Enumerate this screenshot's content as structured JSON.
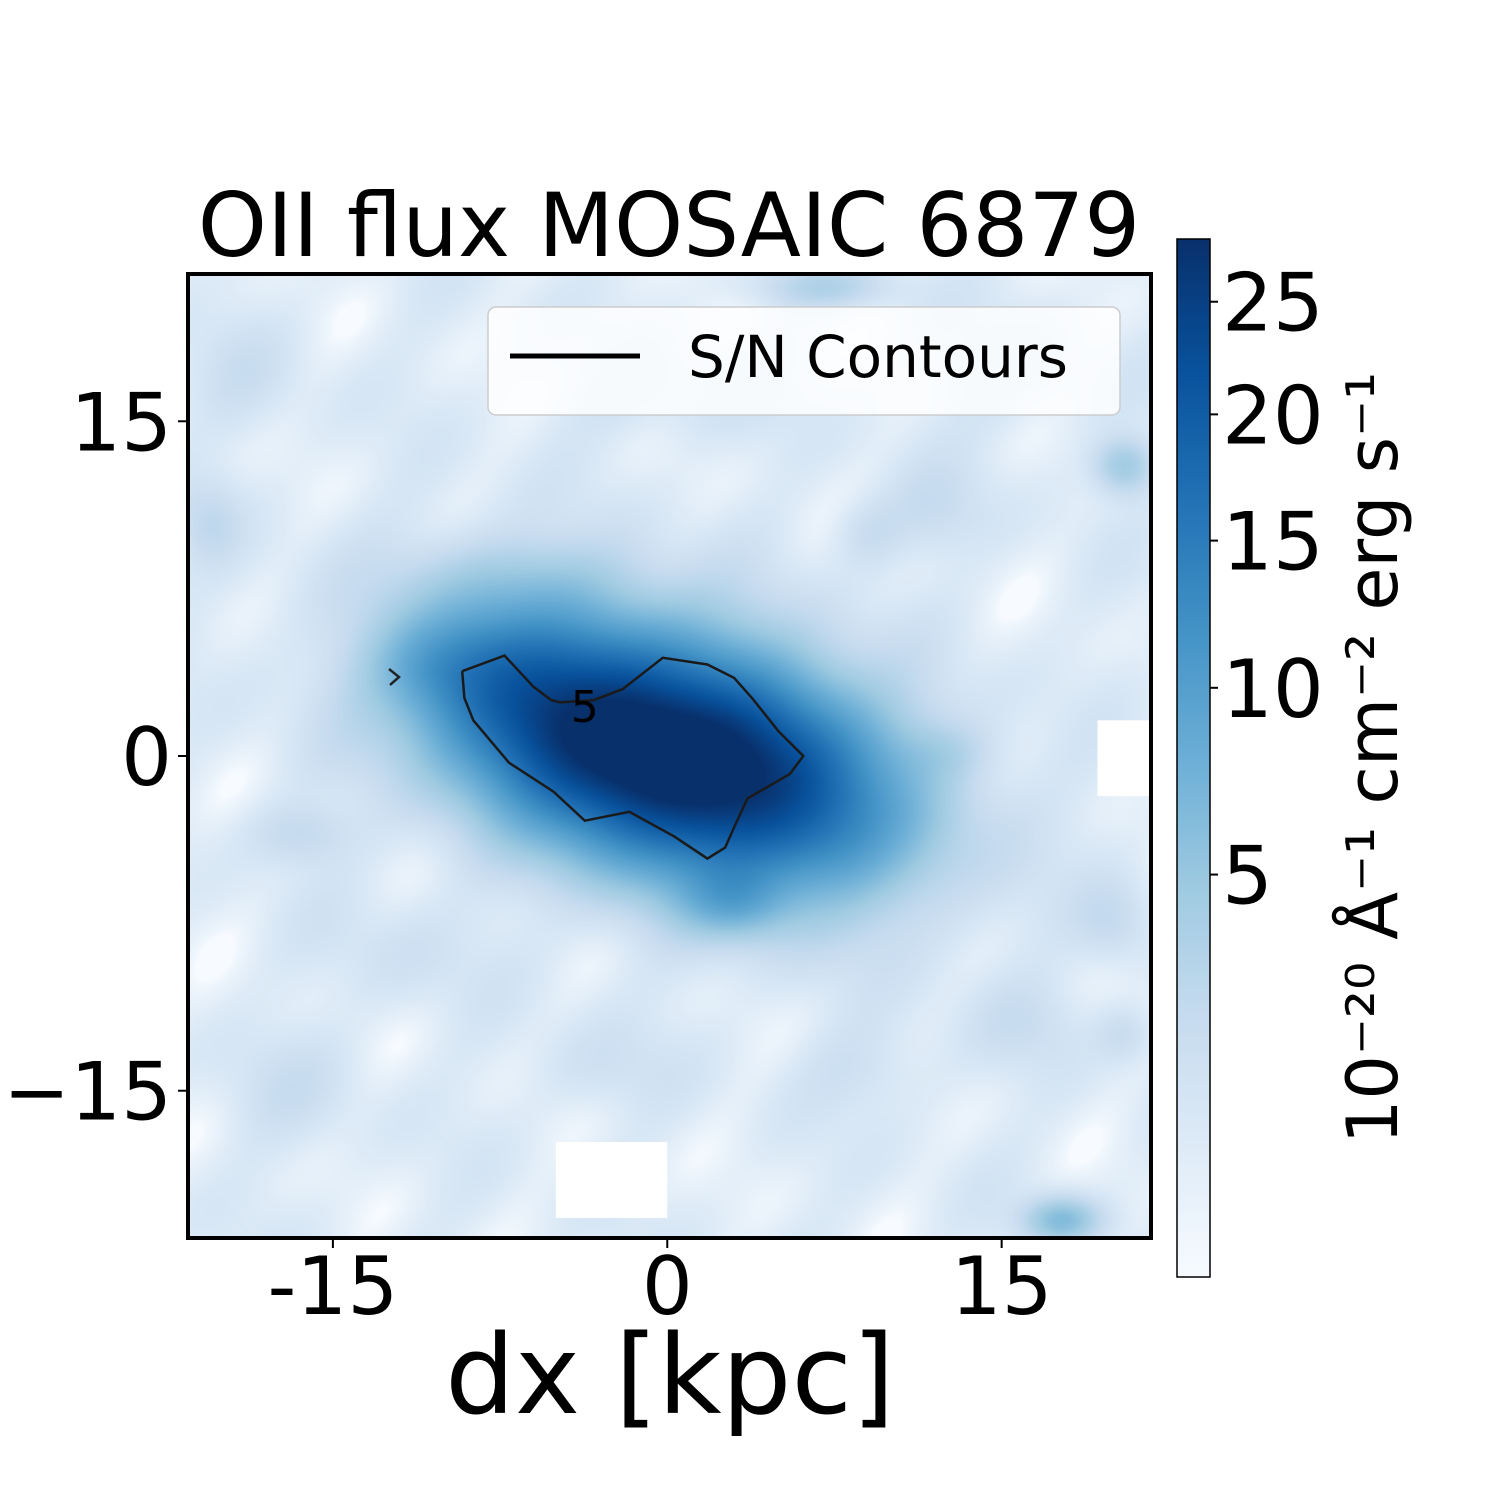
{
  "chart_data": {
    "type": "heatmap",
    "title": "OII flux MOSAIC 6879",
    "xlabel": "dx [kpc]",
    "ylabel": "",
    "xlim": [
      -21.5,
      21.7
    ],
    "ylim": [
      -21.6,
      21.6
    ],
    "x_ticks": [
      {
        "value": -15,
        "label": "-15"
      },
      {
        "value": 0,
        "label": "0"
      },
      {
        "value": 15,
        "label": "15"
      }
    ],
    "y_ticks": [
      {
        "value": 15,
        "label": "15"
      },
      {
        "value": 0,
        "label": "0"
      },
      {
        "value": -15,
        "label": "−15"
      }
    ],
    "colormap": "Blues",
    "colorbar": {
      "label": "10⁻²⁰ Å⁻¹ cm⁻² erg s⁻¹",
      "range": [
        0,
        28
      ],
      "ticks": [
        {
          "value": 5,
          "label": "5"
        },
        {
          "value": 10,
          "label": "10"
        },
        {
          "value": 15,
          "label": "15"
        },
        {
          "value": 20,
          "label": "20"
        },
        {
          "value": 25,
          "label": "25"
        }
      ]
    },
    "legend": {
      "placement": "top-right",
      "entries": [
        {
          "label": "S/N Contours",
          "color": "#000000"
        }
      ]
    },
    "contours": [
      {
        "level_label": "5",
        "label_at": [
          -3.7,
          2.2
        ],
        "points": [
          [
            -9.2,
            3.8
          ],
          [
            -7.3,
            4.5
          ],
          [
            -6.0,
            3.1
          ],
          [
            -5.2,
            2.5
          ],
          [
            -4.8,
            2.4
          ],
          [
            -3.3,
            2.5
          ],
          [
            -2.0,
            3.0
          ],
          [
            -0.2,
            4.4
          ],
          [
            1.8,
            4.1
          ],
          [
            3.0,
            3.5
          ],
          [
            3.8,
            2.6
          ],
          [
            5.0,
            1.1
          ],
          [
            6.1,
            0.0
          ],
          [
            5.5,
            -0.8
          ],
          [
            3.6,
            -1.9
          ],
          [
            3.0,
            -3.2
          ],
          [
            2.6,
            -4.1
          ],
          [
            1.8,
            -4.6
          ],
          [
            0.3,
            -3.6
          ],
          [
            -1.7,
            -2.5
          ],
          [
            -3.7,
            -2.9
          ],
          [
            -5.1,
            -1.6
          ],
          [
            -7.1,
            -0.3
          ],
          [
            -8.7,
            1.6
          ],
          [
            -9.1,
            2.6
          ],
          [
            -9.2,
            3.8
          ]
        ]
      }
    ],
    "blobs": [
      {
        "x": 0.0,
        "y": 0.3,
        "sx": 9.0,
        "sy": 4.7,
        "rot": -18,
        "value": 26
      },
      {
        "x": -3.5,
        "y": 0.5,
        "sx": 5.2,
        "sy": 3.4,
        "rot": -25,
        "value": 8
      },
      {
        "x": 4.0,
        "y": -0.8,
        "sx": 4.5,
        "sy": 3.5,
        "rot": 10,
        "value": 6
      },
      {
        "x": -8.5,
        "y": 3.8,
        "sx": 3.4,
        "sy": 3.0,
        "rot": 0,
        "value": 4.5
      },
      {
        "x": -10.5,
        "y": 4.0,
        "sx": 2.5,
        "sy": 1.8,
        "rot": 0,
        "value": 2.4
      },
      {
        "x": 3.0,
        "y": -6.5,
        "sx": 2.2,
        "sy": 1.5,
        "rot": 0,
        "value": 4.5
      },
      {
        "x": 7.0,
        "y": -3.5,
        "sx": 3.5,
        "sy": 2.5,
        "rot": 0,
        "value": 2.5
      },
      {
        "x": -6.5,
        "y": 8.0,
        "sx": 4.0,
        "sy": 1.8,
        "rot": 0,
        "value": 1.6
      },
      {
        "x": -16.5,
        "y": -3.5,
        "sx": 2.2,
        "sy": 1.4,
        "rot": 0,
        "value": 1.8
      },
      {
        "x": 20.5,
        "y": 13.0,
        "sx": 1.3,
        "sy": 1.2,
        "rot": 0,
        "value": 4.0
      },
      {
        "x": 17.7,
        "y": -20.8,
        "sx": 1.6,
        "sy": 1.0,
        "rot": 0,
        "value": 5.5
      },
      {
        "x": 7.0,
        "y": 21.0,
        "sx": 3.0,
        "sy": 0.9,
        "rot": 0,
        "value": 2.5
      },
      {
        "x": -20.5,
        "y": 10.5,
        "sx": 1.3,
        "sy": 1.8,
        "rot": 0,
        "value": 1.6
      },
      {
        "x": 12.0,
        "y": 11.0,
        "sx": 2.5,
        "sy": 2.0,
        "rot": 0,
        "value": 1.2
      },
      {
        "x": 9.0,
        "y": 10.0,
        "sx": 1.5,
        "sy": 1.5,
        "rot": 0,
        "value": 1.4
      },
      {
        "x": 12.5,
        "y": 0.2,
        "sx": 2.0,
        "sy": 1.2,
        "rot": 0,
        "value": 1.3
      },
      {
        "x": 20.0,
        "y": -7.5,
        "sx": 1.6,
        "sy": 1.8,
        "rot": 0,
        "value": 1.6
      },
      {
        "x": -17.0,
        "y": -15.0,
        "sx": 3.0,
        "sy": 2.5,
        "rot": 0,
        "value": 0.9
      },
      {
        "x": 9.0,
        "y": -14.0,
        "sx": 3.0,
        "sy": 2.0,
        "rot": 0,
        "value": 1.0
      },
      {
        "x": -3.0,
        "y": -14.0,
        "sx": 3.0,
        "sy": 2.0,
        "rot": 0,
        "value": 0.9
      },
      {
        "x": 0.0,
        "y": 16.0,
        "sx": 5.0,
        "sy": 2.0,
        "rot": 0,
        "value": 0.8
      },
      {
        "x": 15.0,
        "y": 17.0,
        "sx": 3.5,
        "sy": 2.5,
        "rot": 0,
        "value": 0.8
      },
      {
        "x": -12.0,
        "y": -9.0,
        "sx": 3.5,
        "sy": 2.5,
        "rot": 0,
        "value": 0.8
      },
      {
        "x": 16.0,
        "y": -12.0,
        "sx": 2.5,
        "sy": 2.0,
        "rot": 0,
        "value": 1.0
      },
      {
        "x": -19.0,
        "y": 17.0,
        "sx": 2.5,
        "sy": 2.5,
        "rot": 0,
        "value": 0.8
      },
      {
        "x": 20.5,
        "y": -12.5,
        "sx": 1.2,
        "sy": 1.2,
        "rot": 0,
        "value": 1.4
      }
    ],
    "masked_regions": [
      {
        "x0": -5.0,
        "x1": 0.0,
        "y0": -20.7,
        "y1": -17.3
      },
      {
        "x0": 19.3,
        "x1": 21.7,
        "y0": -1.8,
        "y1": 1.6
      }
    ]
  }
}
